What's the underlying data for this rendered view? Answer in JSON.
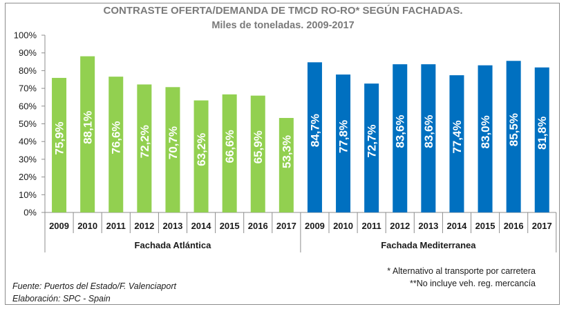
{
  "chart_data": {
    "type": "bar",
    "title": "CONTRASTE OFERTA/DEMANDA DE TMCD RO-RO* SEGÚN FACHADAS.",
    "subtitle": "Miles de toneladas. 2009-2017",
    "xlabel": "",
    "ylabel": "",
    "ylim": [
      0,
      100
    ],
    "yticks": [
      "0%",
      "10%",
      "20%",
      "30%",
      "40%",
      "50%",
      "60%",
      "70%",
      "80%",
      "90%",
      "100%"
    ],
    "grid": false,
    "legend": "none",
    "groups": [
      {
        "name": "Fachada Atlántica",
        "color": "#92d050",
        "categories": [
          "2009",
          "2010",
          "2011",
          "2012",
          "2013",
          "2014",
          "2015",
          "2016",
          "2017"
        ],
        "values": [
          75.9,
          88.1,
          76.6,
          72.2,
          70.7,
          63.2,
          66.6,
          65.9,
          53.3
        ],
        "labels": [
          "75,9%",
          "88,1%",
          "76,6%",
          "72,2%",
          "70,7%",
          "63,2%",
          "66,6%",
          "65,9%",
          "53,3%"
        ]
      },
      {
        "name": "Fachada Mediterranea",
        "color": "#0070c0",
        "categories": [
          "2009",
          "2010",
          "2011",
          "2012",
          "2013",
          "2014",
          "2015",
          "2016",
          "2017"
        ],
        "values": [
          84.7,
          77.8,
          72.7,
          83.6,
          83.6,
          77.4,
          83.0,
          85.5,
          81.8
        ],
        "labels": [
          "84,7%",
          "77,8%",
          "72,7%",
          "83,6%",
          "83,6%",
          "77,4%",
          "83,0%",
          "85,5%",
          "81,8%"
        ]
      }
    ]
  },
  "notes": {
    "footnote1": "*  Alternativo al transporte por carretera",
    "footnote2": "**No incluye veh. reg. mercancía",
    "source": "Fuente: Puertos del Estado/F. Valenciaport",
    "elaboration": "Elaboración: SPC - Spain"
  }
}
